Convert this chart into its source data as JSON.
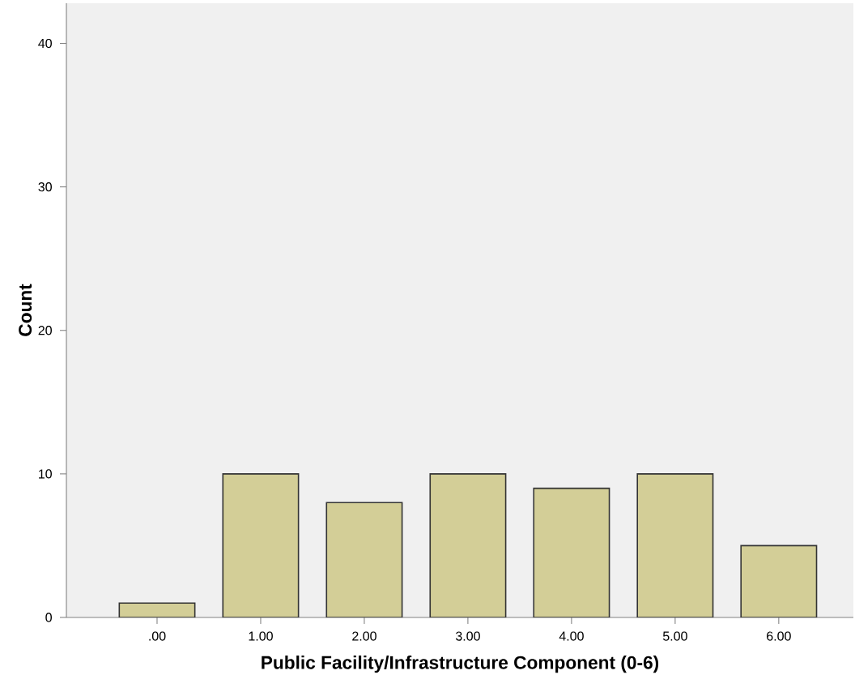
{
  "chart_data": {
    "type": "bar",
    "xlabel": "Public Facility/Infrastructure Component (0-6)",
    "ylabel": "Count",
    "categories": [
      ".00",
      "1.00",
      "2.00",
      "3.00",
      "4.00",
      "5.00",
      "6.00"
    ],
    "values": [
      1,
      10,
      8,
      10,
      9,
      10,
      5
    ],
    "color": "#d3ce97",
    "ylim": [
      0,
      42.8
    ],
    "yticks": [
      0,
      10,
      20,
      30,
      40
    ],
    "grid": false
  }
}
